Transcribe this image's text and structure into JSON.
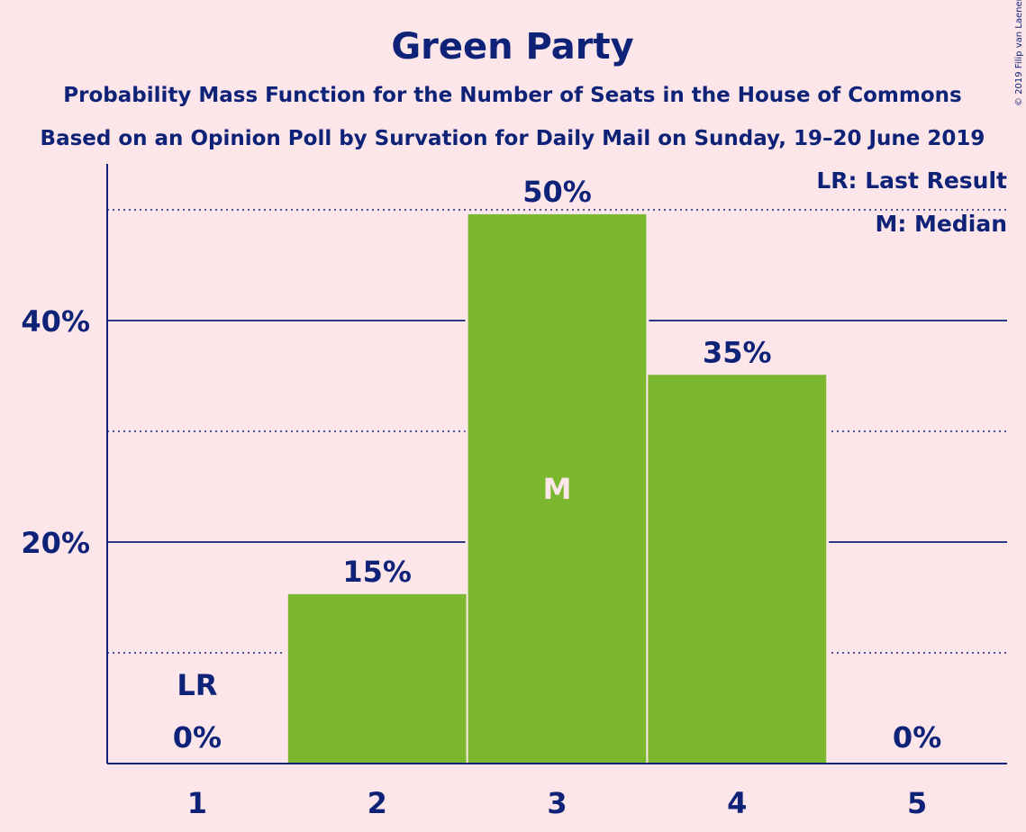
{
  "title": "Green Party",
  "subtitle1": "Probability Mass Function for the Number of Seats in the House of Commons",
  "subtitle2": "Based on an Opinion Poll by Survation for Daily Mail on Sunday, 19–20 June 2019",
  "copyright": "© 2019 Filip van Laenen",
  "legend": {
    "last_result": "LR: Last Result",
    "median": "M: Median"
  },
  "colors": {
    "background": "#fde6ea",
    "bar": "#7cb82f",
    "text": "#0e2278",
    "median_label": "#fde6ea"
  },
  "chart_data": {
    "type": "bar",
    "categories": [
      "1",
      "2",
      "3",
      "4",
      "5"
    ],
    "values": [
      0,
      15.3,
      49.6,
      35.1,
      0
    ],
    "data_labels": [
      "0%",
      "15%",
      "50%",
      "35%",
      "0%"
    ],
    "ylim": [
      0,
      54
    ],
    "y_ticks": [
      20,
      40
    ],
    "y_tick_labels": [
      "20%",
      "40%"
    ],
    "y_minor_gridlines": [
      10,
      30,
      50
    ],
    "last_result_category": "1",
    "last_result_label": "LR",
    "median_category": "3",
    "median_label": "M",
    "grid": true,
    "legend_position": "top-right"
  }
}
